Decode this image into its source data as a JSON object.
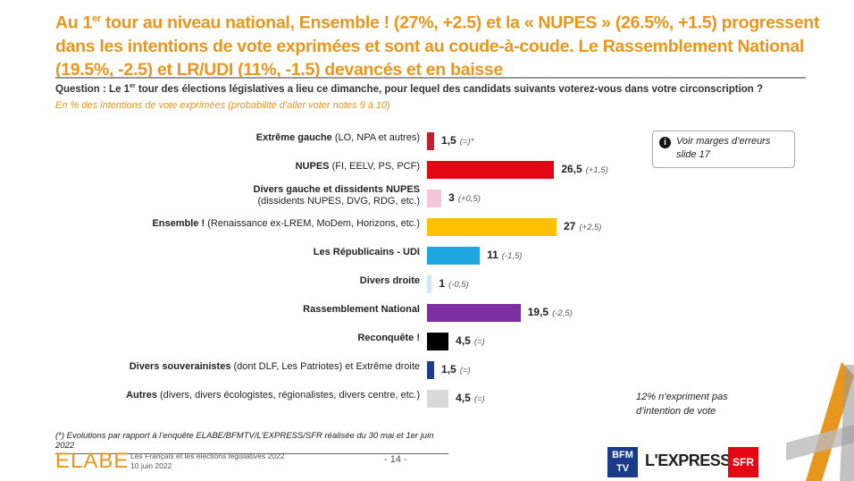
{
  "header": {
    "title_pre": "Au 1",
    "title_sup": "er",
    "title_post": " tour au niveau national, Ensemble ! (27%, +2.5) et la « NUPES » (26.5%, +1.5) progressent dans les intentions de vote exprimées et sont au coude-à-coude. Le Rassemblement National (19.5%, -2.5) et LR/UDI (11%, -1.5) devancés et en baisse",
    "question_pre": "Question : Le 1",
    "question_sup": "er",
    "question_post": " tour des élections législatives a lieu ce dimanche, pour lequel des candidats suivants voterez-vous dans votre circonscription ?",
    "subtitle": "En % des intentions de vote exprimées (probabilité d’aller voter notes 9 à 10)"
  },
  "chart_data": {
    "type": "bar",
    "orientation": "horizontal",
    "xlim": [
      0,
      27
    ],
    "categories": [
      {
        "bold": "Extrême gauche",
        "rest": " (LO, NPA et autres)",
        "value": 1.5,
        "value_label": "1,5",
        "change": "(=)*",
        "color": "#c0212f"
      },
      {
        "bold": "NUPES",
        "rest": " (FI, EELV, PS, PCF)",
        "value": 26.5,
        "value_label": "26,5",
        "change": "(+1,5)",
        "color": "#e30613"
      },
      {
        "bold": "Divers gauche et dissidents NUPES",
        "rest": "(dissidents NUPES, DVG, RDG, etc.)",
        "value": 3,
        "value_label": "3",
        "change": "(+0,5)",
        "color": "#f5c6d8",
        "twoline": true
      },
      {
        "bold": "Ensemble !",
        "rest": " (Renaissance ex-LREM, MoDem, Horizons, etc.)",
        "value": 27,
        "value_label": "27",
        "change": "(+2,5)",
        "color": "#ffc000"
      },
      {
        "bold": "Les Républicains - UDI",
        "rest": "",
        "value": 11,
        "value_label": "11",
        "change": "(-1,5)",
        "color": "#1ea7e1"
      },
      {
        "bold": "Divers droite",
        "rest": "",
        "value": 1,
        "value_label": "1",
        "change": "(-0,5)",
        "color": "#cde9f7"
      },
      {
        "bold": "Rassemblement National",
        "rest": "",
        "value": 19.5,
        "value_label": "19,5",
        "change": "(-2,5)",
        "color": "#7b2fa0"
      },
      {
        "bold": "Reconquête !",
        "rest": "",
        "value": 4.5,
        "value_label": "4,5",
        "change": "(=)",
        "color": "#000000"
      },
      {
        "bold": "Divers souverainistes",
        "rest": " (dont DLF, Les Patriotes) et Extrême droite",
        "value": 1.5,
        "value_label": "1,5",
        "change": "(=)",
        "color": "#1f3c8c"
      },
      {
        "bold": "Autres",
        "rest": " (divers, divers écologistes, régionalistes, divers centre, etc.)",
        "value": 4.5,
        "value_label": "4,5",
        "change": "(=)",
        "color": "#d9d9d9"
      }
    ]
  },
  "note": "Voir marges d’erreurs slide 17",
  "note_icon": "info-icon",
  "non_expressed": "12% n’expriment pas d’intention de vote",
  "footer": {
    "footnote": "(*) Evolutions par rapport à l’enquête ELABE/BFMTV/L’EXPRESS/SFR réalisée du 30 mai et 1er juin 2022",
    "brand": "ELABE",
    "study": "Les Français et les élections législatives 2022",
    "date": "10 juin 2022",
    "page": "- 14 -",
    "logo_bfm": "BFM TV",
    "logo_lexpress": "L'EXPRESS",
    "logo_sfr": "SFR"
  }
}
